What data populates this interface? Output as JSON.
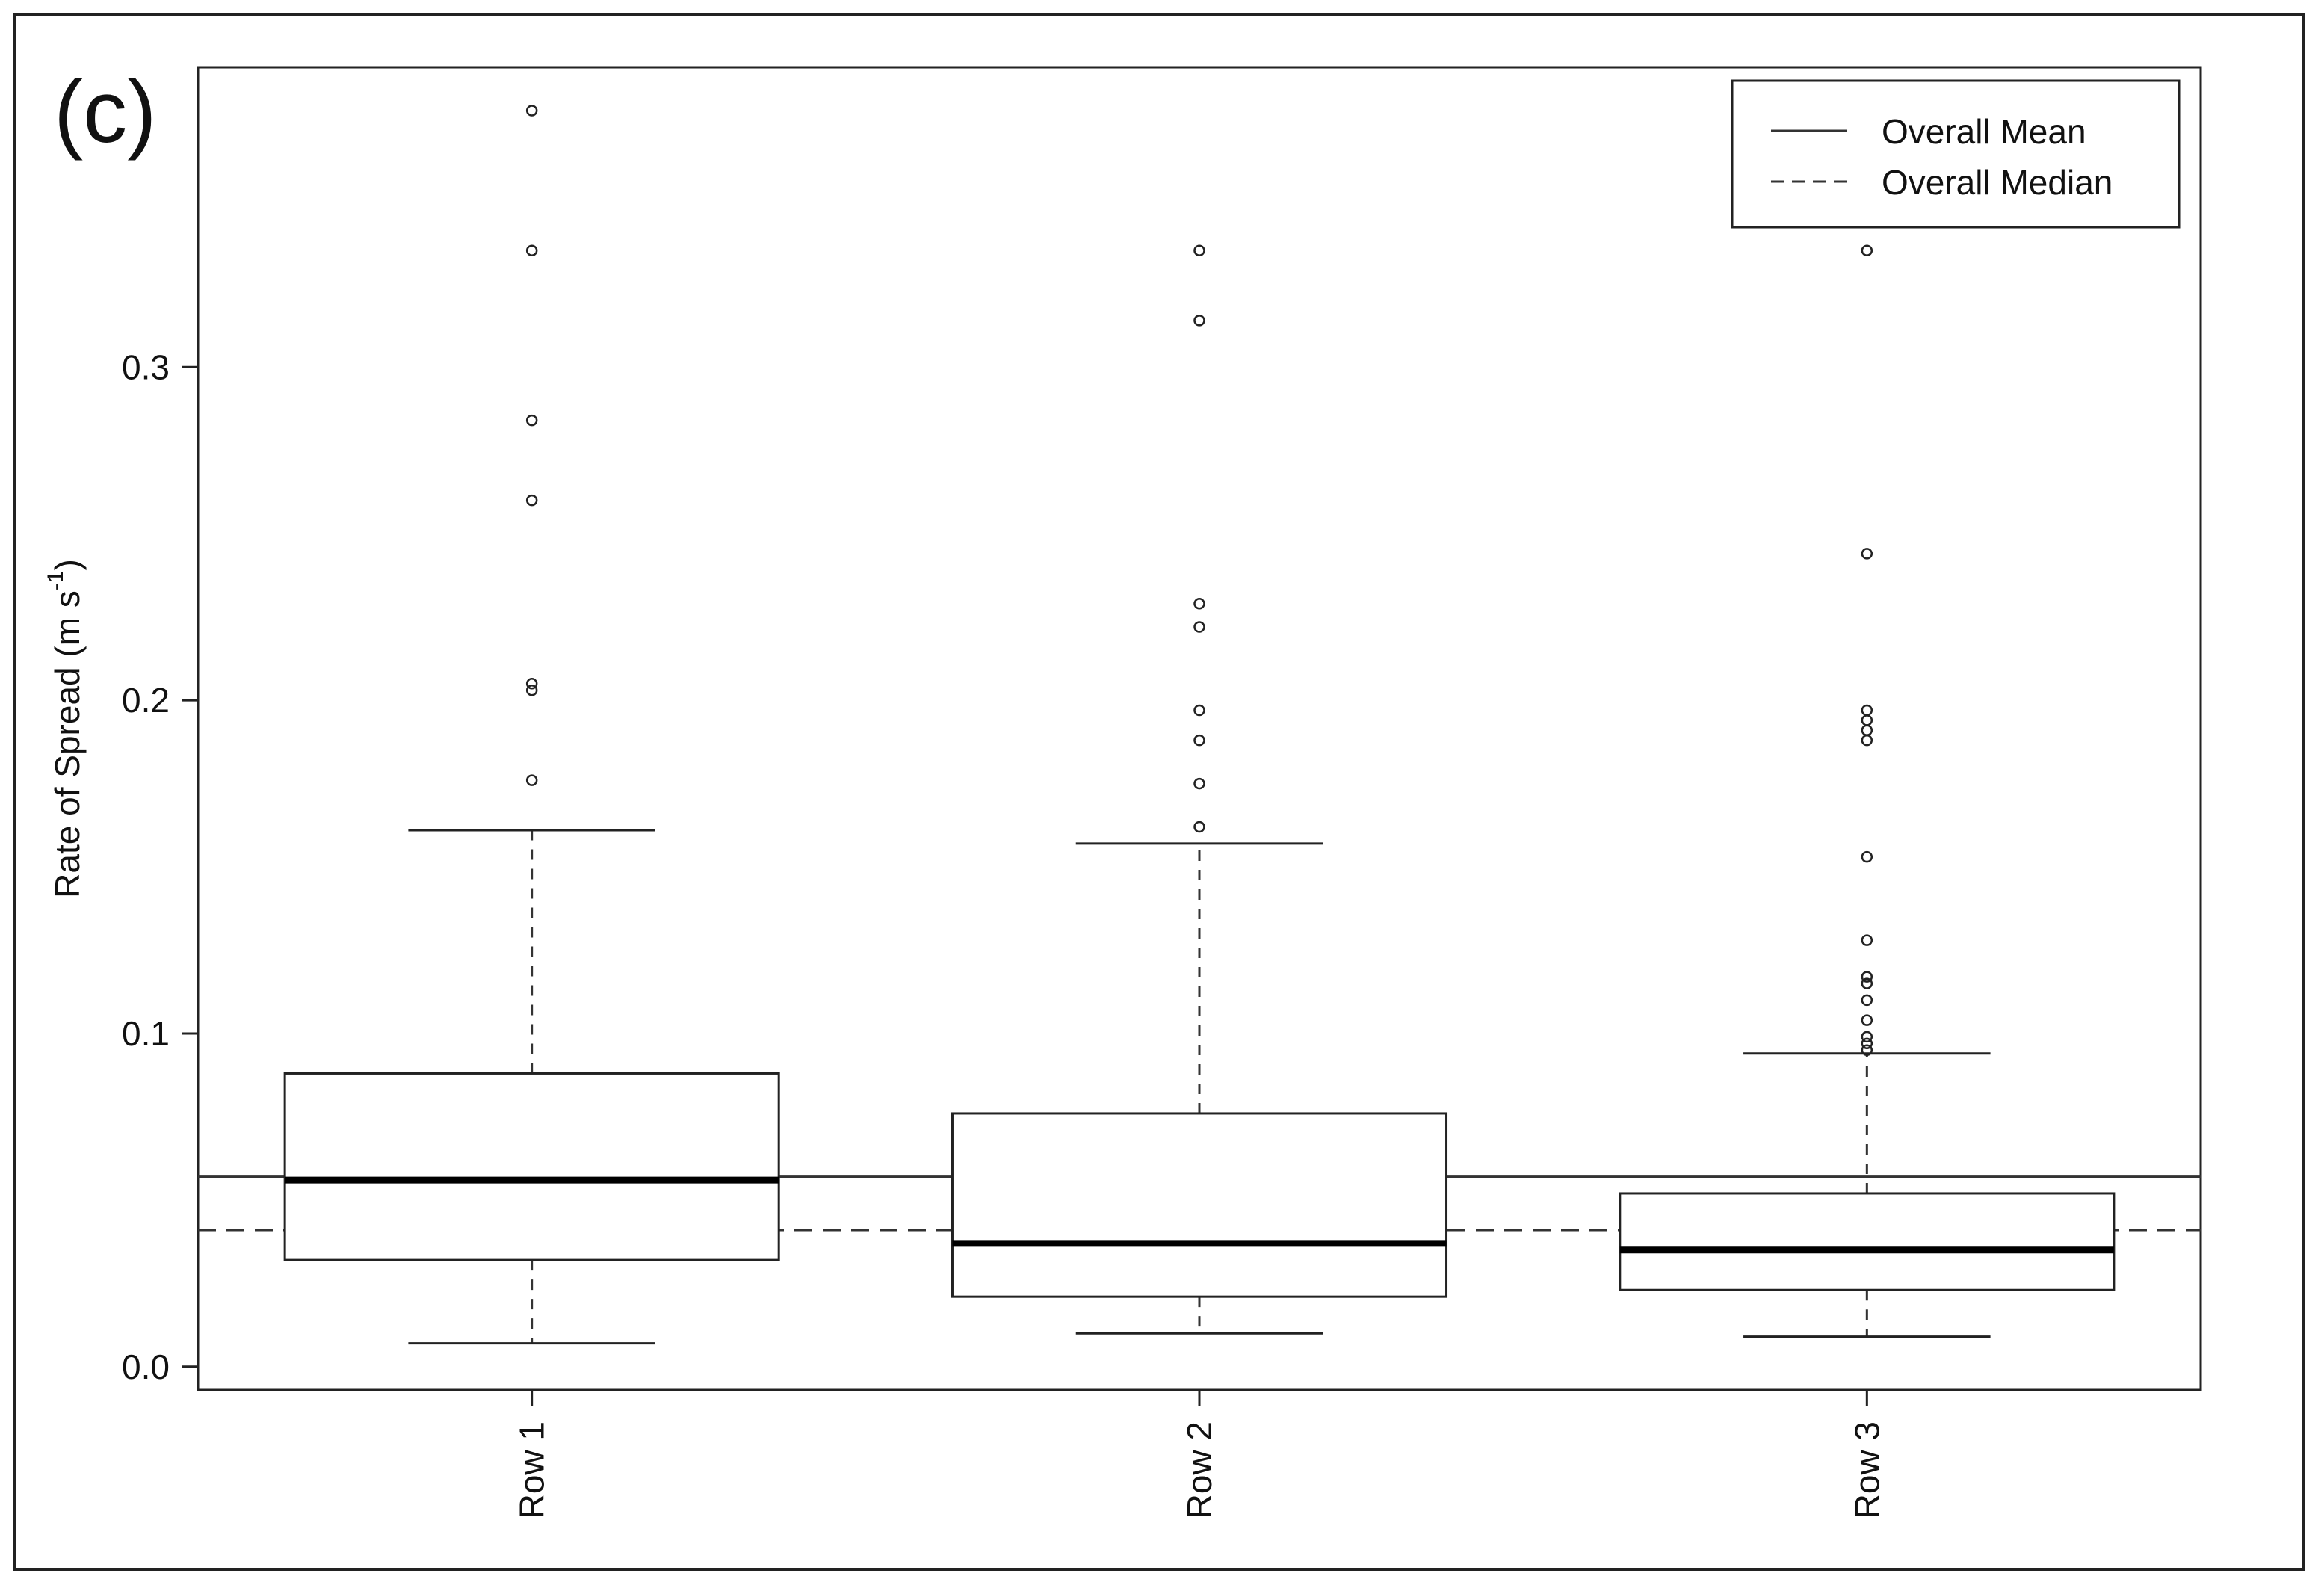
{
  "chart_data": {
    "type": "boxplot",
    "panel_label": "(c)",
    "ylabel": {
      "main": "Rate of Spread (m s",
      "sup": "-1",
      "close": ")"
    },
    "ylim": [
      -0.007,
      0.39
    ],
    "yticks": [
      0.0,
      0.1,
      0.2,
      0.3
    ],
    "ytick_labels": [
      "0.0",
      "0.1",
      "0.2",
      "0.3"
    ],
    "categories": [
      "Row 1",
      "Row 2",
      "Row 3"
    ],
    "boxes": [
      {
        "name": "Row 1",
        "whisker_low": 0.007,
        "q1": 0.032,
        "median": 0.056,
        "q3": 0.088,
        "whisker_high": 0.161,
        "outliers": [
          0.176,
          0.203,
          0.205,
          0.26,
          0.284,
          0.335,
          0.377
        ]
      },
      {
        "name": "Row 2",
        "whisker_low": 0.01,
        "q1": 0.021,
        "median": 0.037,
        "q3": 0.076,
        "whisker_high": 0.157,
        "outliers": [
          0.162,
          0.175,
          0.188,
          0.197,
          0.222,
          0.229,
          0.314,
          0.335
        ]
      },
      {
        "name": "Row 3",
        "whisker_low": 0.009,
        "q1": 0.023,
        "median": 0.035,
        "q3": 0.052,
        "whisker_high": 0.094,
        "outliers": [
          0.095,
          0.097,
          0.099,
          0.104,
          0.11,
          0.115,
          0.117,
          0.128,
          0.153,
          0.188,
          0.191,
          0.194,
          0.197,
          0.244,
          0.335
        ]
      }
    ],
    "reference_lines": [
      {
        "name": "Overall Mean",
        "value": 0.057,
        "style": "solid"
      },
      {
        "name": "Overall Median",
        "value": 0.041,
        "style": "dashed"
      }
    ],
    "legend": {
      "placement": "top-right",
      "entries": [
        "Overall Mean",
        "Overall Median"
      ]
    },
    "grid": false
  }
}
